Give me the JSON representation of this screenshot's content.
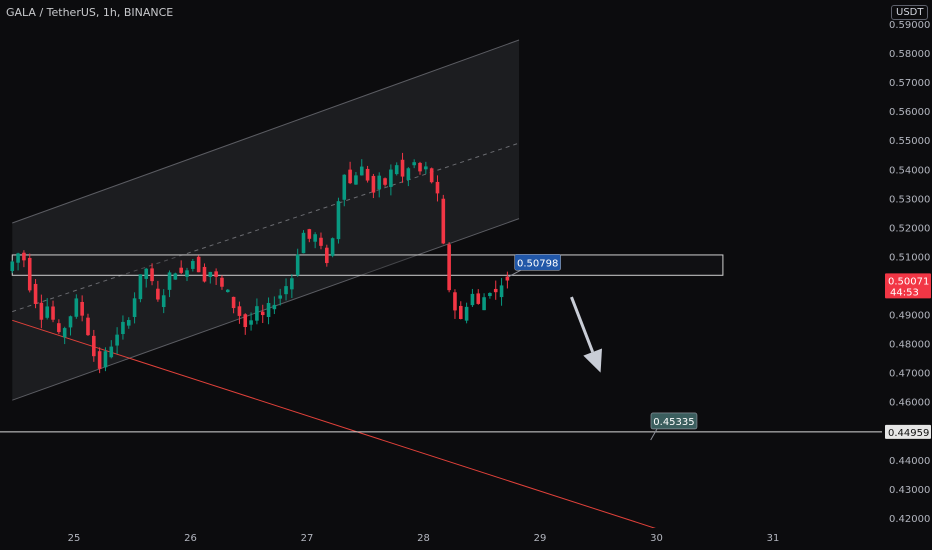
{
  "header": {
    "title": "GALA / TetherUS, 1h, BINANCE",
    "currency": "USDT"
  },
  "chart_data": {
    "type": "candlestick",
    "symbol": "GALA / TetherUS",
    "interval": "1h",
    "exchange": "BINANCE",
    "ylim": [
      0.415,
      0.59
    ],
    "y_ticks": [
      "0.59000",
      "0.58000",
      "0.57000",
      "0.56000",
      "0.55000",
      "0.54000",
      "0.53000",
      "0.52000",
      "0.51000",
      "0.50000",
      "0.49000",
      "0.48000",
      "0.47000",
      "0.46000",
      "0.45000",
      "0.44000",
      "0.43000",
      "0.42000"
    ],
    "x_ticks": [
      "25",
      "26",
      "27",
      "28",
      "29",
      "30",
      "31"
    ],
    "x_tick_days": [
      25,
      26,
      27,
      28,
      29,
      30,
      31
    ],
    "xlim": [
      24.47,
      32.38
    ],
    "ohlc_close_path": [
      [
        24.47,
        0.505
      ],
      [
        24.52,
        0.508
      ],
      [
        24.57,
        0.511
      ],
      [
        24.62,
        0.509
      ],
      [
        24.67,
        0.5
      ],
      [
        24.72,
        0.495
      ],
      [
        24.77,
        0.49
      ],
      [
        24.82,
        0.493
      ],
      [
        24.87,
        0.488
      ],
      [
        24.92,
        0.482
      ],
      [
        24.97,
        0.486
      ],
      [
        25.02,
        0.49
      ],
      [
        25.07,
        0.494
      ],
      [
        25.12,
        0.49
      ],
      [
        25.17,
        0.484
      ],
      [
        25.22,
        0.476
      ],
      [
        25.27,
        0.472
      ],
      [
        25.32,
        0.476
      ],
      [
        25.37,
        0.48
      ],
      [
        25.42,
        0.482
      ],
      [
        25.47,
        0.486
      ],
      [
        25.52,
        0.49
      ],
      [
        25.57,
        0.496
      ],
      [
        25.62,
        0.502
      ],
      [
        25.67,
        0.506
      ],
      [
        25.72,
        0.5
      ],
      [
        25.77,
        0.494
      ],
      [
        25.82,
        0.498
      ],
      [
        25.87,
        0.503
      ],
      [
        25.92,
        0.506
      ],
      [
        25.97,
        0.503
      ],
      [
        26.02,
        0.507
      ],
      [
        26.07,
        0.509
      ],
      [
        26.12,
        0.506
      ],
      [
        26.17,
        0.503
      ],
      [
        26.22,
        0.505
      ],
      [
        26.27,
        0.502
      ],
      [
        26.32,
        0.499
      ],
      [
        26.37,
        0.497
      ],
      [
        26.42,
        0.493
      ],
      [
        26.47,
        0.49
      ],
      [
        26.52,
        0.486
      ],
      [
        26.57,
        0.488
      ],
      [
        26.62,
        0.491
      ],
      [
        26.67,
        0.489
      ],
      [
        26.72,
        0.492
      ],
      [
        26.77,
        0.495
      ],
      [
        26.82,
        0.497
      ],
      [
        26.87,
        0.5
      ],
      [
        26.92,
        0.503
      ],
      [
        26.97,
        0.512
      ],
      [
        27.02,
        0.518
      ],
      [
        27.07,
        0.516
      ],
      [
        27.12,
        0.517
      ],
      [
        27.17,
        0.512
      ],
      [
        27.22,
        0.509
      ],
      [
        27.27,
        0.516
      ],
      [
        27.32,
        0.53
      ],
      [
        27.37,
        0.54
      ],
      [
        27.42,
        0.535
      ],
      [
        27.47,
        0.539
      ],
      [
        27.52,
        0.54
      ],
      [
        27.57,
        0.537
      ],
      [
        27.62,
        0.532
      ],
      [
        27.67,
        0.536
      ],
      [
        27.72,
        0.535
      ],
      [
        27.77,
        0.539
      ],
      [
        27.82,
        0.542
      ],
      [
        27.87,
        0.537
      ],
      [
        27.92,
        0.54
      ],
      [
        27.97,
        0.542
      ],
      [
        28.02,
        0.539
      ],
      [
        28.07,
        0.54
      ],
      [
        28.12,
        0.536
      ],
      [
        28.17,
        0.53
      ],
      [
        28.22,
        0.513
      ],
      [
        28.27,
        0.499
      ],
      [
        28.32,
        0.492
      ],
      [
        28.37,
        0.488
      ],
      [
        28.42,
        0.494
      ],
      [
        28.47,
        0.497
      ],
      [
        28.52,
        0.493
      ],
      [
        28.57,
        0.496
      ],
      [
        28.62,
        0.499
      ],
      [
        28.67,
        0.497
      ],
      [
        28.72,
        0.502
      ],
      [
        28.75,
        0.5007
      ]
    ],
    "channel": {
      "upper_line": [
        [
          24.47,
          0.5215
        ],
        [
          28.82,
          0.5845
        ]
      ],
      "lower_line": [
        [
          24.47,
          0.4605
        ],
        [
          28.82,
          0.523
        ]
      ],
      "midline": [
        [
          24.47,
          0.491
        ],
        [
          28.82,
          0.549
        ]
      ]
    },
    "resistance_zone": {
      "top": 0.5105,
      "bottom": 0.5035,
      "x_start": 24.47,
      "x_end": 30.57
    },
    "trendline": [
      [
        24.47,
        0.488
      ],
      [
        30.02,
        0.416
      ]
    ],
    "horizontal_line": {
      "value": 0.44959,
      "label": "0.44959"
    },
    "current_price": {
      "label": "0.50071",
      "countdown": "44:53",
      "color": "#f23645"
    },
    "callouts": [
      {
        "label": "0.50798",
        "value": 0.50798,
        "day": 28.98,
        "color": "#2157a8",
        "pointer": [
          28.73,
          0.503
        ]
      },
      {
        "label": "0.45335",
        "value": 0.45335,
        "day": 30.15,
        "color": "#3b5e5e",
        "pointer": [
          29.95,
          0.4468
        ]
      }
    ],
    "arrow": {
      "from": [
        29.27,
        0.496
      ],
      "to": [
        29.52,
        0.47
      ],
      "color": "#c9cdd6"
    },
    "colors": {
      "up": "#089981",
      "down": "#f23645",
      "background": "#0c0c0e"
    }
  }
}
